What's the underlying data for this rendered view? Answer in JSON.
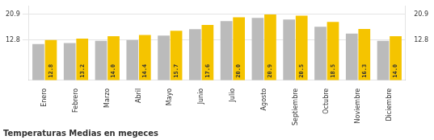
{
  "chart_data": {
    "type": "bar",
    "title": "Temperaturas Medias en megeces",
    "categories": [
      "Enero",
      "Febrero",
      "Marzo",
      "Abril",
      "Mayo",
      "Junio",
      "Julio",
      "Agosto",
      "Septiembre",
      "Octubre",
      "Noviembre",
      "Diciembre"
    ],
    "series": [
      {
        "color": "#BBBBBB",
        "values": [
          11.5,
          11.8,
          12.5,
          12.8,
          14.2,
          16.2,
          18.8,
          19.8,
          19.3,
          17.0,
          14.8,
          12.5
        ]
      },
      {
        "color": "#F5C400",
        "values": [
          12.8,
          13.2,
          14.0,
          14.4,
          15.7,
          17.6,
          20.0,
          20.9,
          20.5,
          18.5,
          16.3,
          14.0
        ],
        "data_labels": true,
        "value_labels": [
          "12.8",
          "13.2",
          "14.0",
          "14.4",
          "15.7",
          "17.6",
          "20.0",
          "20.9",
          "20.5",
          "18.5",
          "16.3",
          "14.0"
        ]
      }
    ],
    "ylim": [
      0,
      23.5
    ],
    "yticks": [
      12.8,
      20.9
    ],
    "y2lim": [
      0,
      23.5
    ],
    "y2ticks": [
      12.8,
      20.9
    ],
    "grid": true
  }
}
